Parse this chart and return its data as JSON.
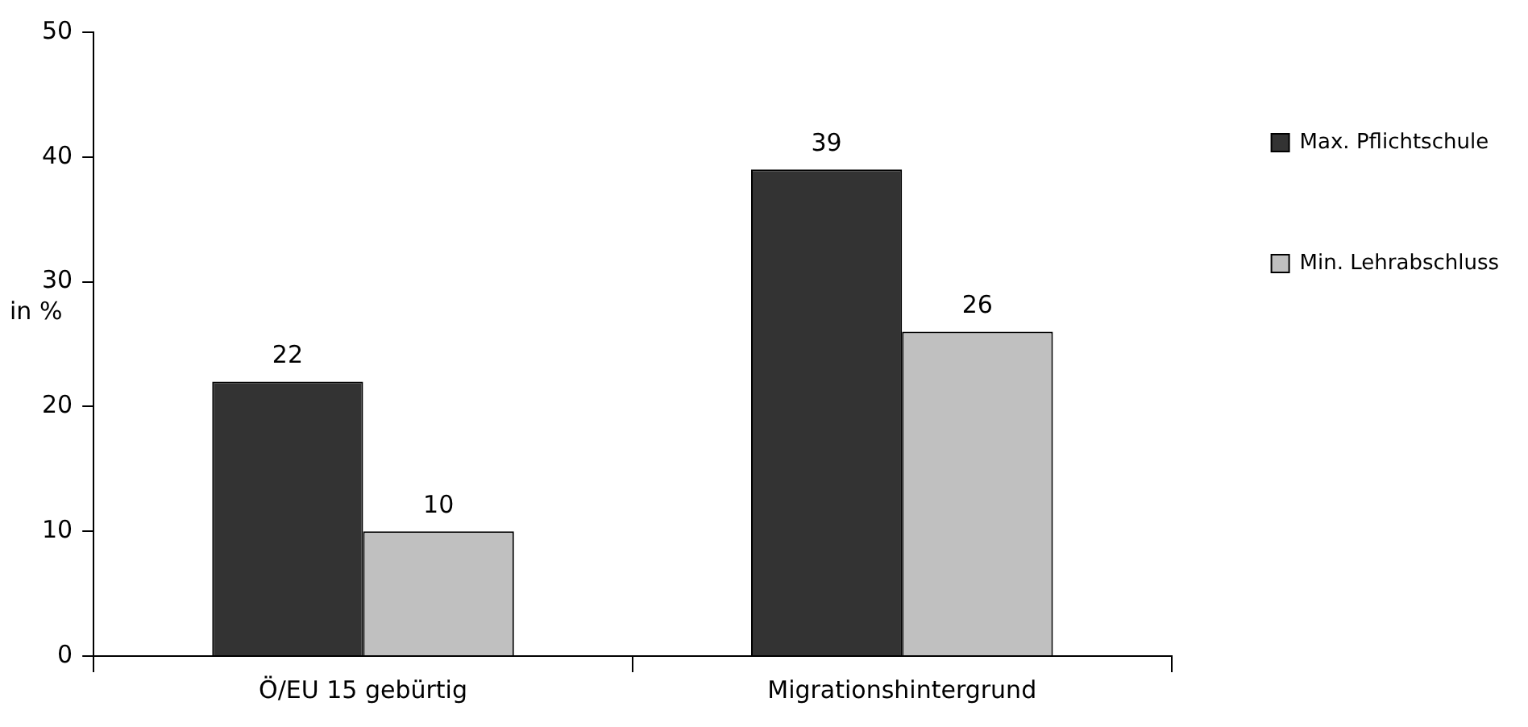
{
  "chart_data": {
    "type": "bar",
    "ylabel": "in %",
    "categories": [
      "Ö/EU 15 gebürtig",
      "Migrationshintergrund"
    ],
    "series": [
      {
        "name": "Max. Pflichtschule",
        "color": "#333333",
        "values": [
          22,
          39
        ]
      },
      {
        "name": "Min. Lehrabschluss",
        "color": "#c0c0c0",
        "values": [
          10,
          26
        ]
      }
    ],
    "ylim": [
      0,
      50
    ],
    "yticks": [
      0,
      10,
      20,
      30,
      40,
      50
    ],
    "grid": false,
    "legend": "top right",
    "data_labels": true
  }
}
